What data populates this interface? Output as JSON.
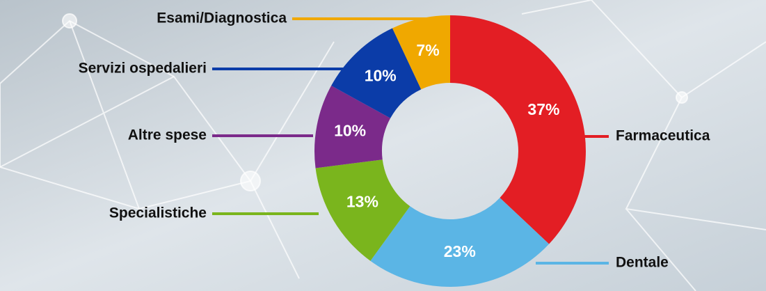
{
  "chart_data": {
    "type": "donut",
    "categories": [
      "Farmaceutica",
      "Dentale",
      "Specialistiche",
      "Altre spese",
      "Servizi ospedalieri",
      "Esami/Diagnostica"
    ],
    "values": [
      37,
      23,
      13,
      10,
      10,
      7
    ],
    "value_labels": [
      "37%",
      "23%",
      "13%",
      "10%",
      "10%",
      "7%"
    ],
    "colors": [
      "#e31e24",
      "#5bb5e5",
      "#7ab51d",
      "#7b2a8a",
      "#0b3ca8",
      "#f0a800"
    ]
  }
}
